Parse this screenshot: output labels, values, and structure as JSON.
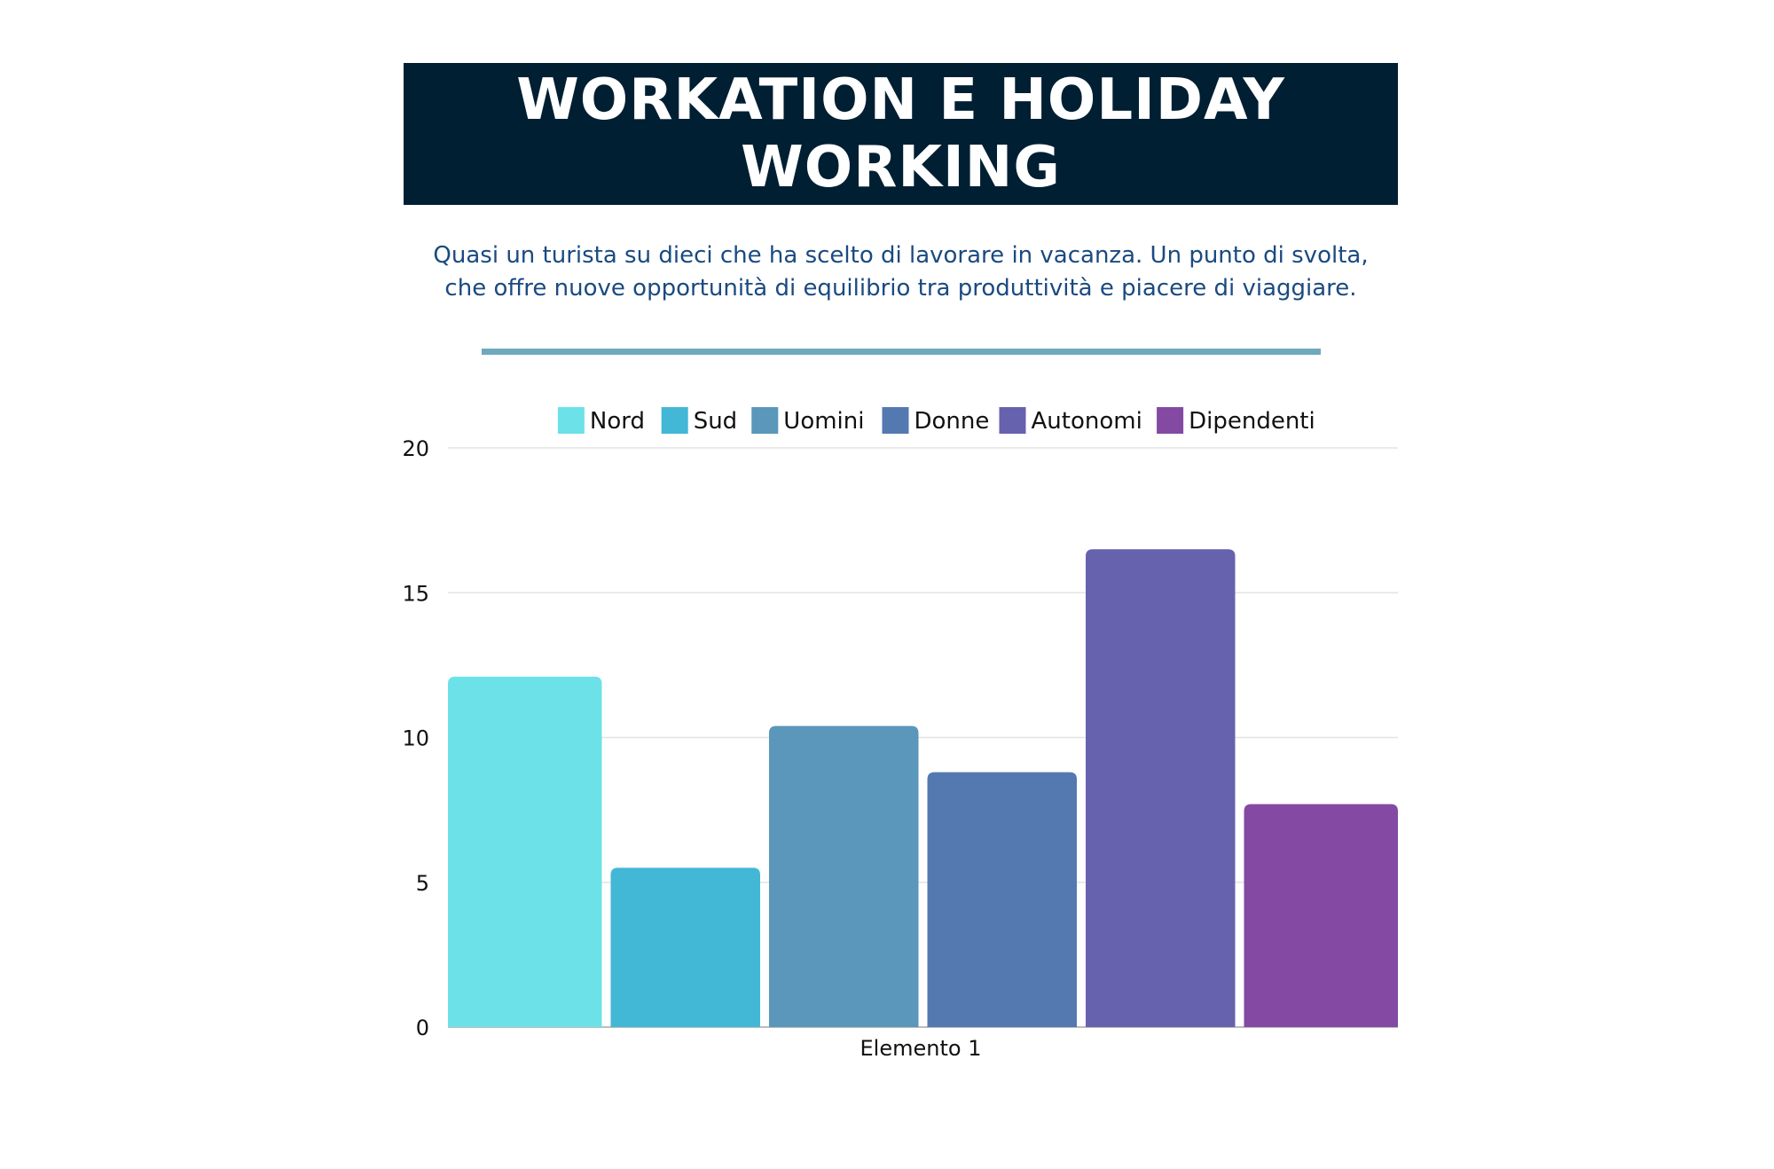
{
  "header": {
    "title_line1": "WORKATION E HOLIDAY",
    "title_line2": "WORKING",
    "subtitle_line1": "Quasi un turista su dieci che ha scelto di lavorare in vacanza. Un punto di svolta,",
    "subtitle_line2": "che offre nuove opportunità di equilibrio tra produttività e piacere di viaggiare."
  },
  "chart_data": {
    "type": "bar",
    "categories": [
      "Elemento 1"
    ],
    "series": [
      {
        "name": "Nord",
        "values": [
          12.1
        ],
        "color": "#6ce2e8"
      },
      {
        "name": "Sud",
        "values": [
          5.5
        ],
        "color": "#43b7d6"
      },
      {
        "name": "Uomini",
        "values": [
          10.4
        ],
        "color": "#5a97ba"
      },
      {
        "name": "Donne",
        "values": [
          8.8
        ],
        "color": "#5479b0"
      },
      {
        "name": "Autonomi",
        "values": [
          16.5
        ],
        "color": "#6762ae"
      },
      {
        "name": "Dipendenti",
        "values": [
          7.7
        ],
        "color": "#8349a3"
      }
    ],
    "ylim": [
      0,
      20
    ],
    "yticks": [
      "0",
      "5",
      "10",
      "15",
      "20"
    ],
    "xlabel": "",
    "ylabel": "",
    "grid": true,
    "legend_position": "top"
  }
}
